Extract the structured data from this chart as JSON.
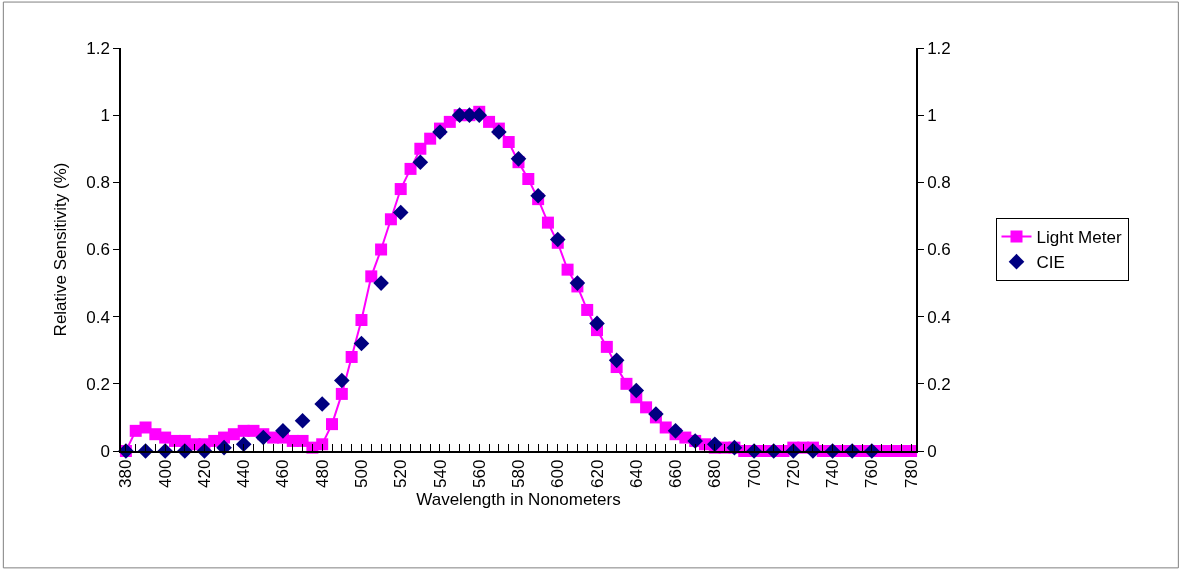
{
  "chart_data": {
    "type": "line",
    "xlabel": "Wavelength in Nonometers",
    "ylabel": "Relative Sensitivity (%)",
    "xlim": [
      377.5,
      782.5
    ],
    "xticks": [
      380,
      {
        "value": 385,
        "label": null
      },
      {
        "value": 390,
        "label": null
      },
      {
        "value": 395,
        "label": null
      },
      400,
      {
        "value": 405,
        "label": null
      },
      {
        "value": 410,
        "label": null
      },
      {
        "value": 415,
        "label": null
      },
      420,
      {
        "value": 425,
        "label": null
      },
      {
        "value": 430,
        "label": null
      },
      {
        "value": 435,
        "label": null
      },
      440,
      {
        "value": 445,
        "label": null
      },
      {
        "value": 450,
        "label": null
      },
      {
        "value": 455,
        "label": null
      },
      460,
      {
        "value": 465,
        "label": null
      },
      {
        "value": 470,
        "label": null
      },
      {
        "value": 475,
        "label": null
      },
      480,
      {
        "value": 485,
        "label": null
      },
      {
        "value": 490,
        "label": null
      },
      {
        "value": 495,
        "label": null
      },
      500,
      {
        "value": 505,
        "label": null
      },
      {
        "value": 510,
        "label": null
      },
      {
        "value": 515,
        "label": null
      },
      520,
      {
        "value": 525,
        "label": null
      },
      {
        "value": 530,
        "label": null
      },
      {
        "value": 535,
        "label": null
      },
      540,
      {
        "value": 545,
        "label": null
      },
      {
        "value": 550,
        "label": null
      },
      {
        "value": 555,
        "label": null
      },
      560,
      {
        "value": 565,
        "label": null
      },
      {
        "value": 570,
        "label": null
      },
      {
        "value": 575,
        "label": null
      },
      580,
      {
        "value": 585,
        "label": null
      },
      {
        "value": 590,
        "label": null
      },
      {
        "value": 595,
        "label": null
      },
      600,
      {
        "value": 605,
        "label": null
      },
      {
        "value": 610,
        "label": null
      },
      {
        "value": 615,
        "label": null
      },
      620,
      {
        "value": 625,
        "label": null
      },
      {
        "value": 630,
        "label": null
      },
      {
        "value": 635,
        "label": null
      },
      640,
      {
        "value": 645,
        "label": null
      },
      {
        "value": 650,
        "label": null
      },
      {
        "value": 655,
        "label": null
      },
      660,
      {
        "value": 665,
        "label": null
      },
      {
        "value": 670,
        "label": null
      },
      {
        "value": 675,
        "label": null
      },
      680,
      {
        "value": 685,
        "label": null
      },
      {
        "value": 690,
        "label": null
      },
      {
        "value": 695,
        "label": null
      },
      700,
      {
        "value": 705,
        "label": null
      },
      {
        "value": 710,
        "label": null
      },
      {
        "value": 715,
        "label": null
      },
      720,
      {
        "value": 725,
        "label": null
      },
      {
        "value": 730,
        "label": null
      },
      {
        "value": 735,
        "label": null
      },
      740,
      {
        "value": 745,
        "label": null
      },
      {
        "value": 750,
        "label": null
      },
      {
        "value": 755,
        "label": null
      },
      760,
      {
        "value": 765,
        "label": null
      },
      {
        "value": 770,
        "label": null
      },
      {
        "value": 775,
        "label": null
      },
      780
    ],
    "ylim": [
      0,
      1.2
    ],
    "yticks": [
      0,
      0.2,
      0.4,
      0.6,
      0.8,
      1,
      1.2
    ],
    "y2lim": [
      0,
      1.2
    ],
    "y2ticks": [
      0,
      0.2,
      0.4,
      0.6,
      0.8,
      1,
      1.2
    ],
    "legend": "right",
    "series": [
      {
        "name": "Light Meter",
        "marker": "square",
        "line_style": "solid",
        "color": "#ff00ff",
        "x": [
          380,
          385,
          390,
          395,
          400,
          405,
          410,
          415,
          420,
          425,
          430,
          435,
          440,
          445,
          450,
          455,
          460,
          465,
          470,
          475,
          480,
          485,
          490,
          495,
          500,
          505,
          510,
          515,
          520,
          525,
          530,
          535,
          540,
          545,
          550,
          555,
          560,
          565,
          570,
          575,
          580,
          585,
          590,
          595,
          600,
          605,
          610,
          615,
          620,
          625,
          630,
          635,
          640,
          645,
          650,
          655,
          660,
          665,
          670,
          675,
          680,
          685,
          690,
          695,
          700,
          705,
          710,
          715,
          720,
          725,
          730,
          735,
          740,
          745,
          750,
          755,
          760,
          765,
          770,
          775,
          780
        ],
        "values": [
          0.0,
          0.06,
          0.07,
          0.05,
          0.04,
          0.03,
          0.03,
          0.02,
          0.02,
          0.03,
          0.04,
          0.05,
          0.06,
          0.06,
          0.05,
          0.04,
          0.04,
          0.03,
          0.03,
          0.01,
          0.02,
          0.08,
          0.17,
          0.28,
          0.39,
          0.52,
          0.6,
          0.69,
          0.78,
          0.84,
          0.9,
          0.93,
          0.96,
          0.98,
          1.0,
          1.0,
          1.01,
          0.98,
          0.96,
          0.92,
          0.86,
          0.81,
          0.75,
          0.68,
          0.62,
          0.54,
          0.49,
          0.42,
          0.36,
          0.31,
          0.25,
          0.2,
          0.16,
          0.13,
          0.1,
          0.07,
          0.05,
          0.04,
          0.03,
          0.02,
          0.01,
          0.01,
          0.01,
          0.0,
          0.0,
          0.0,
          0.0,
          0.0,
          0.01,
          0.01,
          0.01,
          0.0,
          0.0,
          0.0,
          0.0,
          0.0,
          0.0,
          0.0,
          0.0,
          0.0,
          0.0
        ]
      },
      {
        "name": "CIE",
        "type": "scatter",
        "marker": "diamond",
        "color": "#000080",
        "x": [
          380,
          390,
          400,
          410,
          420,
          430,
          440,
          450,
          460,
          470,
          480,
          490,
          500,
          510,
          520,
          530,
          540,
          550,
          555,
          560,
          570,
          580,
          590,
          600,
          610,
          620,
          630,
          640,
          650,
          660,
          670,
          680,
          690,
          700,
          710,
          720,
          730,
          740,
          750,
          760
        ],
        "values": [
          0.0,
          0.0,
          0.0,
          0.0,
          0.0,
          0.01,
          0.02,
          0.04,
          0.06,
          0.09,
          0.14,
          0.21,
          0.32,
          0.5,
          0.71,
          0.86,
          0.95,
          1.0,
          1.0,
          1.0,
          0.95,
          0.87,
          0.76,
          0.63,
          0.5,
          0.38,
          0.27,
          0.18,
          0.11,
          0.06,
          0.03,
          0.02,
          0.01,
          0.0,
          0.0,
          0.0,
          0.0,
          0.0,
          0.0,
          0.0
        ]
      }
    ]
  }
}
